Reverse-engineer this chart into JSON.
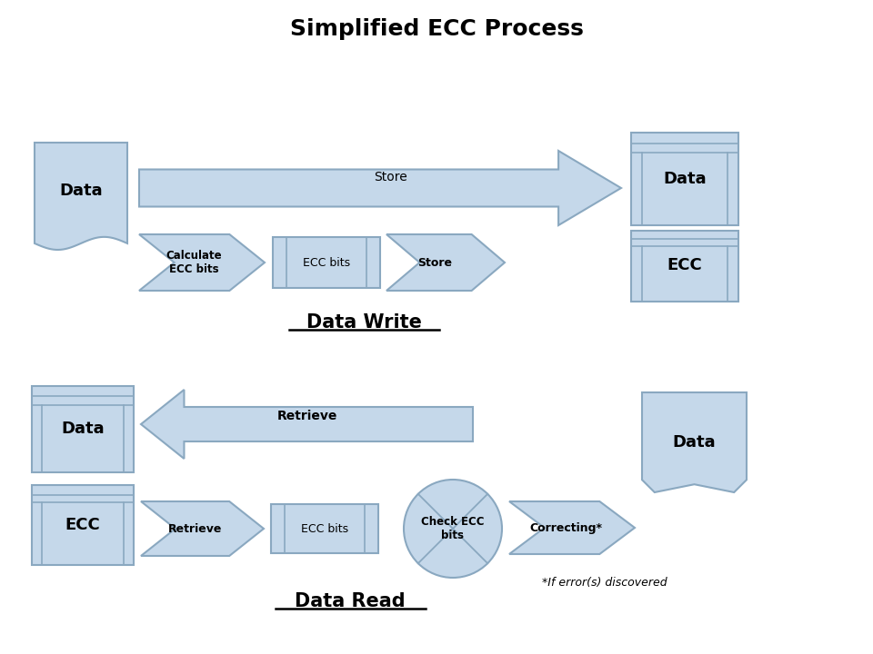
{
  "title": "Simplified ECC Process",
  "shape_fill": "#c5d8ea",
  "shape_edge": "#8aa8c0",
  "section1_label": "Data Write",
  "section2_label": "Data Read",
  "note_text": "*If error(s) discovered",
  "write_store_label": "Store",
  "write_calc_label": "Calculate\nECC bits",
  "write_ecc_bits_label": "ECC bits",
  "write_store2_label": "Store",
  "write_data_label": "Data",
  "write_ecc_label": "ECC",
  "read_retrieve1_label": "Retrieve",
  "read_retrieve2_label": "Retrieve",
  "read_ecc_bits_label": "ECC bits",
  "read_check_label": "Check ECC\nbits",
  "read_correcting_label": "Correcting*",
  "read_data_out_label": "Data",
  "read_data_in_label": "Data",
  "read_ecc_in_label": "ECC"
}
